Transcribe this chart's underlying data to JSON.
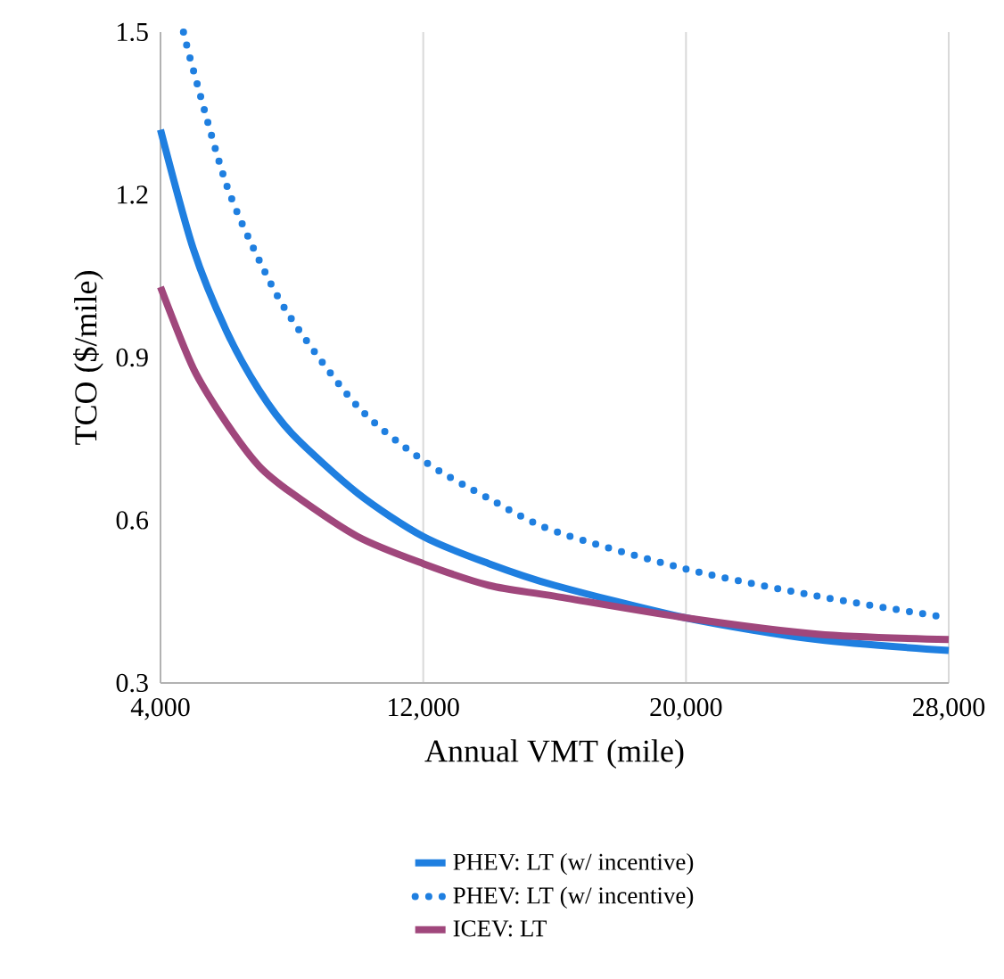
{
  "chart_data": {
    "type": "line",
    "xlabel": "Annual VMT (mile)",
    "ylabel": "TCO ($/mile)",
    "xlim": [
      4000,
      28000
    ],
    "ylim": [
      0.3,
      1.5
    ],
    "xticks": [
      {
        "value": 4000,
        "label": "4,000"
      },
      {
        "value": 12000,
        "label": "12,000"
      },
      {
        "value": 20000,
        "label": "20,000"
      },
      {
        "value": 28000,
        "label": "28,000"
      }
    ],
    "yticks": [
      0.3,
      0.6,
      0.9,
      1.2,
      1.5
    ],
    "grid": "x",
    "legend": "bottom",
    "series": [
      {
        "name": "PHEV: LT (w/ incentive)",
        "color": "#1f7fe0",
        "line_style": "solid",
        "x": [
          4000,
          5000,
          6000,
          7000,
          8000,
          10000,
          12000,
          14000,
          16000,
          20000,
          24000,
          28000
        ],
        "values": [
          1.32,
          1.1,
          0.95,
          0.84,
          0.76,
          0.65,
          0.57,
          0.52,
          0.48,
          0.42,
          0.38,
          0.36
        ]
      },
      {
        "name": "PHEV: LT (w/ incentive)",
        "color": "#1f7fe0",
        "line_style": "dotted",
        "x": [
          4700,
          5000,
          6000,
          7000,
          8000,
          10000,
          12000,
          14000,
          16000,
          20000,
          24000,
          28000
        ],
        "values": [
          1.5,
          1.43,
          1.22,
          1.08,
          0.97,
          0.81,
          0.71,
          0.64,
          0.58,
          0.51,
          0.46,
          0.42
        ]
      },
      {
        "name": "ICEV: LT",
        "color": "#a0477c",
        "line_style": "solid",
        "x": [
          4000,
          5000,
          6000,
          7000,
          8000,
          10000,
          12000,
          14000,
          16000,
          20000,
          24000,
          28000
        ],
        "values": [
          1.03,
          0.88,
          0.78,
          0.7,
          0.65,
          0.57,
          0.52,
          0.48,
          0.46,
          0.42,
          0.39,
          0.38
        ]
      }
    ]
  }
}
